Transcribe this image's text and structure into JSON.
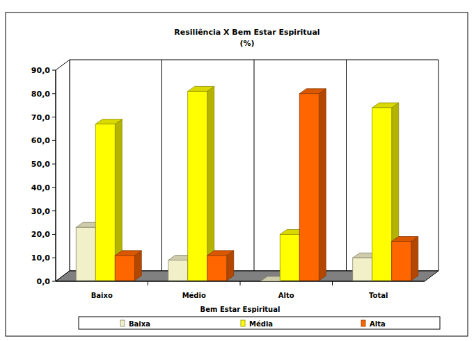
{
  "chart_data": {
    "type": "bar",
    "title": "Resiliência X Bem Estar Espiritual",
    "subtitle": "(%)",
    "x_label": "Bem Estar Espiritual",
    "categories": [
      "Baixo",
      "Médio",
      "Alto",
      "Total"
    ],
    "series": [
      {
        "name": "Baixa",
        "color": "#f2f0c8",
        "values": [
          23,
          9,
          0,
          10
        ]
      },
      {
        "name": "Média",
        "color": "#ffff00",
        "values": [
          67,
          81,
          20,
          74
        ]
      },
      {
        "name": "Alta",
        "color": "#ff6600",
        "values": [
          11,
          11,
          80,
          17
        ]
      }
    ],
    "ylim": [
      0,
      90
    ],
    "yticks": [
      {
        "value": 0,
        "label": "0,0"
      },
      {
        "value": 10,
        "label": "10,0"
      },
      {
        "value": 20,
        "label": "20,0"
      },
      {
        "value": 30,
        "label": "30,0"
      },
      {
        "value": 40,
        "label": "40,0"
      },
      {
        "value": 50,
        "label": "50,0"
      },
      {
        "value": 60,
        "label": "60,0"
      },
      {
        "value": 70,
        "label": "70,0"
      },
      {
        "value": 80,
        "label": "80,0"
      },
      {
        "value": 90,
        "label": "90,0"
      }
    ],
    "grid": false,
    "legend": "bottom"
  }
}
